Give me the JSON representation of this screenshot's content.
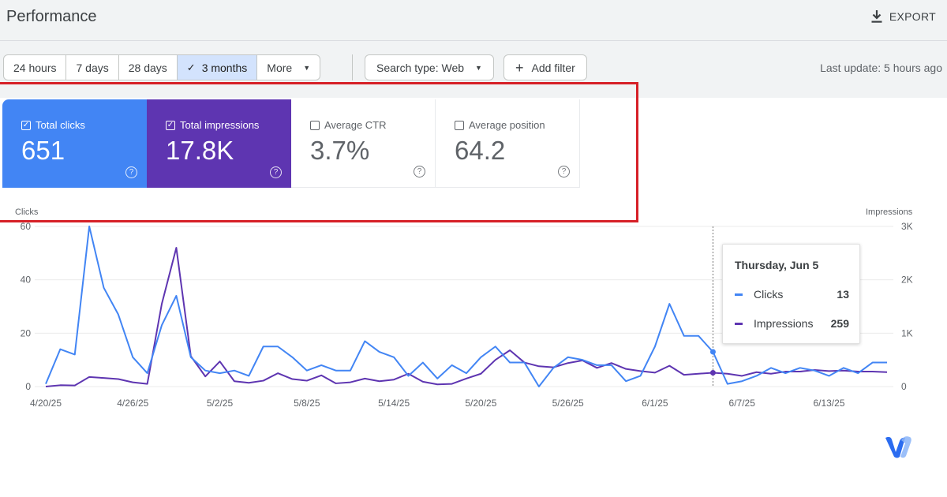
{
  "header": {
    "title": "Performance",
    "export_label": "EXPORT"
  },
  "toolbar": {
    "date_ranges": [
      {
        "label": "24 hours",
        "active": false
      },
      {
        "label": "7 days",
        "active": false
      },
      {
        "label": "28 days",
        "active": false
      },
      {
        "label": "3 months",
        "active": true
      }
    ],
    "more_label": "More",
    "search_type_label": "Search type: Web",
    "add_filter_label": "Add filter",
    "last_update": "Last update: 5 hours ago"
  },
  "metrics": {
    "clicks": {
      "label": "Total clicks",
      "value": "651",
      "checked": true,
      "color": "#4285f4"
    },
    "impressions": {
      "label": "Total impressions",
      "value": "17.8K",
      "checked": true,
      "color": "#5e35b1"
    },
    "ctr": {
      "label": "Average CTR",
      "value": "3.7%",
      "checked": false
    },
    "position": {
      "label": "Average position",
      "value": "64.2",
      "checked": false
    }
  },
  "chart_data": {
    "type": "line",
    "left_axis_title": "Clicks",
    "right_axis_title": "Impressions",
    "left_ticks": [
      "0",
      "20",
      "40",
      "60"
    ],
    "right_ticks": [
      "0",
      "1K",
      "2K",
      "3K"
    ],
    "ylim_left": [
      0,
      60
    ],
    "ylim_right": [
      0,
      3000
    ],
    "x_tick_labels": [
      "4/20/25",
      "4/26/25",
      "5/2/25",
      "5/8/25",
      "5/14/25",
      "5/20/25",
      "5/26/25",
      "6/1/25",
      "6/7/25",
      "6/13/25"
    ],
    "grid": true,
    "series": [
      {
        "name": "Clicks",
        "axis": "left",
        "color": "#4285f4",
        "values": [
          1,
          14,
          12,
          60,
          37,
          27,
          11,
          5,
          23,
          34,
          11,
          6,
          5,
          6,
          4,
          15,
          15,
          11,
          6,
          8,
          6,
          6,
          17,
          13,
          11,
          4,
          9,
          3,
          8,
          5,
          11,
          15,
          9,
          9,
          0,
          7,
          11,
          10,
          8,
          8,
          2,
          4,
          15,
          31,
          19,
          19,
          13,
          1,
          2,
          4,
          7,
          5,
          7,
          6,
          4,
          7,
          5,
          9,
          9
        ]
      },
      {
        "name": "Impressions",
        "axis": "right",
        "color": "#5e35b1",
        "values": [
          0,
          25,
          20,
          180,
          160,
          140,
          80,
          50,
          1550,
          2600,
          570,
          190,
          470,
          100,
          70,
          110,
          250,
          140,
          110,
          210,
          60,
          80,
          150,
          100,
          130,
          240,
          90,
          40,
          50,
          150,
          240,
          500,
          680,
          450,
          380,
          360,
          440,
          490,
          350,
          440,
          330,
          290,
          260,
          390,
          220,
          240,
          259,
          240,
          200,
          270,
          240,
          280,
          280,
          310,
          290,
          300,
          280,
          280,
          270
        ]
      }
    ],
    "hover": {
      "date": "Thursday, Jun 5",
      "clicks_label": "Clicks",
      "clicks_value": "13",
      "impressions_label": "Impressions",
      "impressions_value": "259"
    }
  },
  "icons": {
    "export": "download-icon",
    "help": "help-circle-icon",
    "check": "check-icon",
    "caret": "caret-down-icon",
    "plus": "plus-icon",
    "logo": "brand-logo-icon"
  },
  "colors": {
    "annotation_box": "#d62027",
    "accent_active_range": "#d3e3fd"
  }
}
